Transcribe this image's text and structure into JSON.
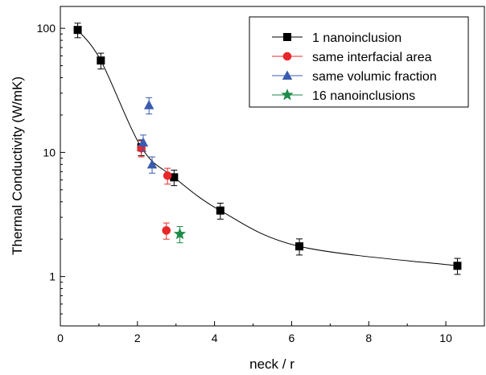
{
  "chart_data": {
    "type": "scatter",
    "title": "",
    "xlabel": "neck / r",
    "ylabel": "Thermal Conductivity (W/mK)",
    "xlim": [
      0,
      11
    ],
    "ylim": [
      0.4,
      150
    ],
    "yscale": "log",
    "x_ticks": [
      0,
      2,
      4,
      6,
      8,
      10
    ],
    "x_tick_labels": [
      "0",
      "2",
      "4",
      "6",
      "8",
      "10"
    ],
    "y_ticks": [
      1,
      10,
      100
    ],
    "y_tick_labels": [
      "1",
      "10",
      "100"
    ],
    "grid": false,
    "legend_position": "top-right",
    "series": [
      {
        "name": "1 nanoinclusion",
        "color": "#000000",
        "marker": "square",
        "line": "smooth",
        "points": [
          {
            "x": 0.45,
            "y": 97,
            "err": 13
          },
          {
            "x": 1.05,
            "y": 55,
            "err": 8
          },
          {
            "x": 2.1,
            "y": 11,
            "err": 1.6
          },
          {
            "x": 2.95,
            "y": 6.3,
            "err": 0.9
          },
          {
            "x": 4.15,
            "y": 3.4,
            "err": 0.5
          },
          {
            "x": 6.2,
            "y": 1.75,
            "err": 0.26
          },
          {
            "x": 10.3,
            "y": 1.22,
            "err": 0.18
          }
        ]
      },
      {
        "name": "same interfacial area",
        "color": "#e8272a",
        "marker": "circle",
        "points": [
          {
            "x": 2.1,
            "y": 10.8,
            "err": 1.6
          },
          {
            "x": 2.78,
            "y": 6.5,
            "err": 0.95
          },
          {
            "x": 2.75,
            "y": 2.35,
            "err": 0.35
          }
        ]
      },
      {
        "name": "same volumic fraction",
        "color": "#3a5bb0",
        "marker": "triangle",
        "points": [
          {
            "x": 2.15,
            "y": 12,
            "err": 1.8
          },
          {
            "x": 2.3,
            "y": 24,
            "err": 3.6
          },
          {
            "x": 2.38,
            "y": 8,
            "err": 1.2
          }
        ]
      },
      {
        "name": "16 nanoinclusions",
        "color": "#1e8a4a",
        "marker": "star",
        "points": [
          {
            "x": 3.1,
            "y": 2.2,
            "err": 0.33
          }
        ]
      }
    ]
  }
}
